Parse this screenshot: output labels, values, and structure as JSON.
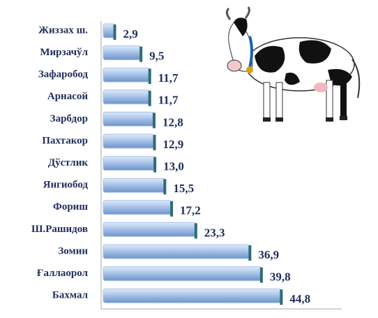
{
  "chart_data": {
    "type": "hbar",
    "categories": [
      "Жиззах ш.",
      "Мирзачўл",
      "Зафаробод",
      "Арнасой",
      "Зарбдор",
      "Пахтакор",
      "Дўстлик",
      "Янгиобод",
      "Фориш",
      "Ш.Рашидов",
      "Зомин",
      "Ғаллаорол",
      "Бахмал"
    ],
    "values": [
      2.9,
      9.5,
      11.7,
      11.7,
      12.8,
      12.9,
      13.0,
      15.5,
      17.2,
      23.3,
      36.9,
      39.8,
      44.8
    ],
    "value_labels": [
      "2,9",
      "9,5",
      "11,7",
      "11,7",
      "12,8",
      "12,9",
      "13,0",
      "15,5",
      "17,2",
      "23,3",
      "36,9",
      "39,8",
      "44,8"
    ],
    "color": "#a9c4ea",
    "xlim": [
      0,
      60
    ]
  }
}
